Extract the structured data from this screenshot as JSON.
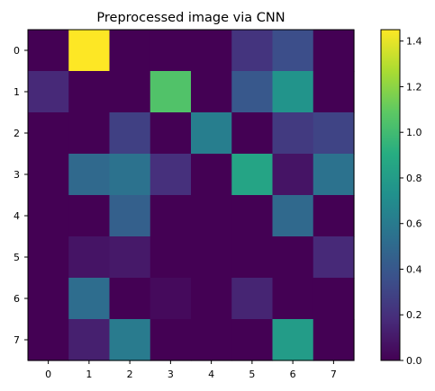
{
  "chart_data": {
    "type": "heatmap",
    "title": "Preprocessed image via CNN",
    "x_categories": [
      "0",
      "1",
      "2",
      "3",
      "4",
      "5",
      "6",
      "7"
    ],
    "y_categories": [
      "0",
      "1",
      "2",
      "3",
      "4",
      "5",
      "6",
      "7"
    ],
    "values": [
      [
        0.0,
        1.45,
        0.0,
        0.0,
        0.0,
        0.22,
        0.35,
        0.0
      ],
      [
        0.17,
        0.0,
        0.0,
        1.05,
        0.0,
        0.4,
        0.75,
        0.0
      ],
      [
        0.0,
        0.0,
        0.28,
        0.0,
        0.62,
        0.0,
        0.25,
        0.3
      ],
      [
        0.0,
        0.5,
        0.55,
        0.2,
        0.0,
        0.85,
        0.08,
        0.55
      ],
      [
        0.0,
        0.0,
        0.45,
        0.0,
        0.0,
        0.0,
        0.5,
        0.0
      ],
      [
        0.0,
        0.08,
        0.1,
        0.0,
        0.0,
        0.0,
        0.0,
        0.17
      ],
      [
        0.0,
        0.52,
        0.0,
        0.04,
        0.0,
        0.15,
        0.0,
        0.0
      ],
      [
        0.0,
        0.13,
        0.6,
        0.0,
        0.0,
        0.0,
        0.8,
        0.0
      ]
    ],
    "colormap": "viridis",
    "vmin": 0.0,
    "vmax": 1.45,
    "colorbar_ticks": [
      "0.0",
      "0.2",
      "0.4",
      "0.6",
      "0.8",
      "1.0",
      "1.2",
      "1.4"
    ],
    "grid": false
  }
}
